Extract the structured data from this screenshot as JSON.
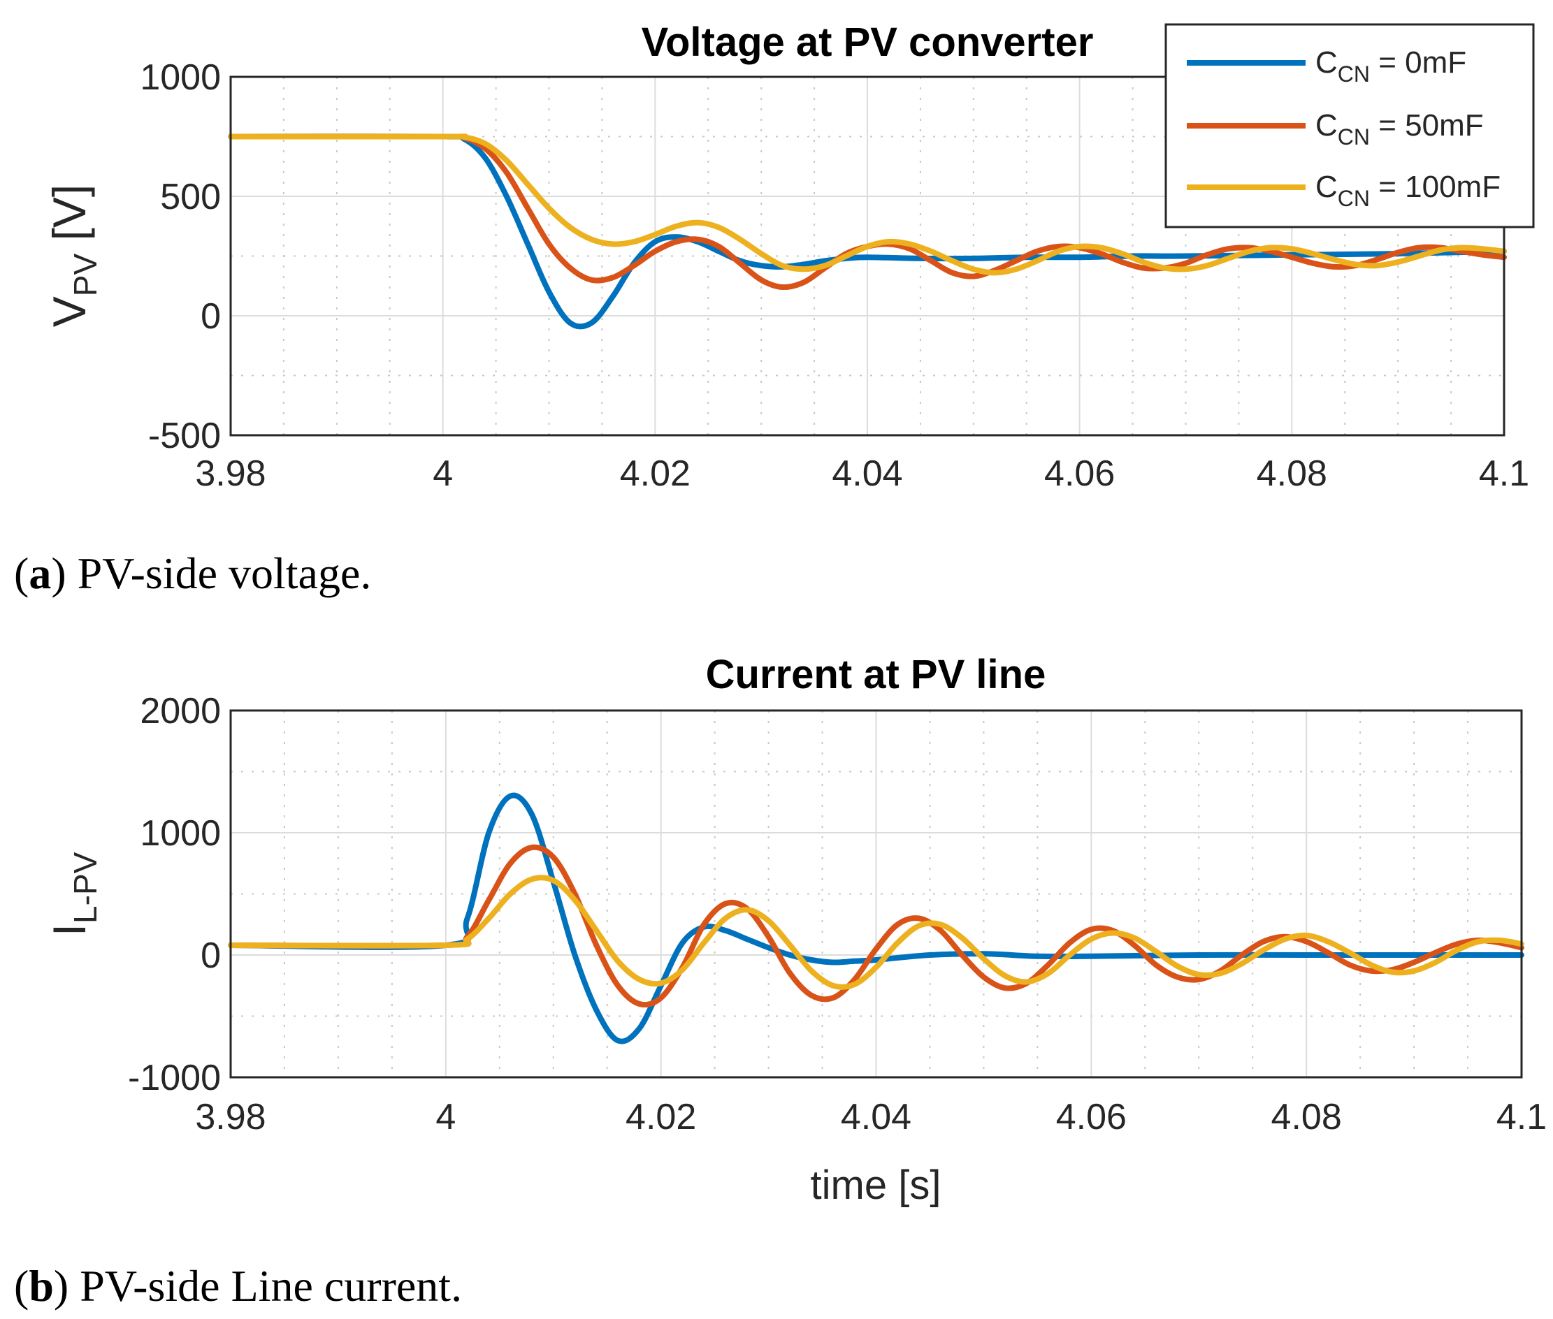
{
  "chart_data": [
    {
      "id": "voltage",
      "type": "line",
      "title": "Voltage at PV converter",
      "ylabel_main": "V",
      "ylabel_sub": "PV",
      "ylabel_unit": " [V]",
      "xlabel": "",
      "xlim": [
        3.98,
        4.1
      ],
      "ylim": [
        -500,
        1000
      ],
      "xticks": [
        "3.98",
        "4",
        "4.02",
        "4.04",
        "4.06",
        "4.08",
        "4.1"
      ],
      "yticks": [
        "-500",
        "0",
        "500",
        "1000"
      ],
      "legend": [
        {
          "main": "C",
          "sub": "CN",
          "rest": " = 0mF"
        },
        {
          "main": "C",
          "sub": "CN",
          "rest": " = 50mF"
        },
        {
          "main": "C",
          "sub": "CN",
          "rest": " = 100mF"
        }
      ],
      "legend_position": "top-right",
      "caption_letter": "a",
      "caption_text": ") PV-side voltage.",
      "caption_open": "(",
      "series": [
        {
          "name": "C_CN = 0mF",
          "color": "#0072BD",
          "x": [
            3.98,
            4.0,
            4.002,
            4.004,
            4.006,
            4.008,
            4.01,
            4.012,
            4.014,
            4.016,
            4.018,
            4.02,
            4.022,
            4.024,
            4.026,
            4.028,
            4.03,
            4.032,
            4.034,
            4.036,
            4.038,
            4.04,
            4.045,
            4.05,
            4.055,
            4.06,
            4.065,
            4.07,
            4.08,
            4.09,
            4.1
          ],
          "y": [
            750,
            750,
            740,
            660,
            500,
            300,
            100,
            -30,
            -30,
            80,
            220,
            310,
            330,
            310,
            270,
            230,
            210,
            205,
            215,
            230,
            240,
            245,
            240,
            240,
            245,
            245,
            250,
            250,
            255,
            260,
            270
          ]
        },
        {
          "name": "C_CN = 50mF",
          "color": "#D95319",
          "x": [
            3.98,
            4.0,
            4.002,
            4.004,
            4.006,
            4.008,
            4.01,
            4.012,
            4.014,
            4.016,
            4.018,
            4.02,
            4.022,
            4.024,
            4.026,
            4.028,
            4.03,
            4.032,
            4.034,
            4.036,
            4.038,
            4.04,
            4.042,
            4.044,
            4.046,
            4.048,
            4.05,
            4.052,
            4.054,
            4.056,
            4.058,
            4.06,
            4.062,
            4.064,
            4.066,
            4.068,
            4.07,
            4.072,
            4.074,
            4.076,
            4.078,
            4.08,
            4.082,
            4.084,
            4.086,
            4.088,
            4.09,
            4.092,
            4.094,
            4.096,
            4.098,
            4.1
          ],
          "y": [
            750,
            750,
            745,
            700,
            600,
            450,
            300,
            200,
            150,
            160,
            210,
            270,
            310,
            320,
            290,
            220,
            150,
            120,
            140,
            200,
            260,
            290,
            300,
            280,
            230,
            180,
            165,
            190,
            230,
            270,
            290,
            285,
            260,
            225,
            200,
            200,
            220,
            255,
            280,
            285,
            270,
            245,
            220,
            205,
            210,
            235,
            265,
            285,
            285,
            270,
            255,
            245
          ]
        },
        {
          "name": "C_CN = 100mF",
          "color": "#EDB120",
          "x": [
            3.98,
            4.0,
            4.002,
            4.004,
            4.006,
            4.008,
            4.01,
            4.012,
            4.014,
            4.016,
            4.018,
            4.02,
            4.022,
            4.024,
            4.026,
            4.028,
            4.03,
            4.032,
            4.034,
            4.036,
            4.038,
            4.04,
            4.042,
            4.044,
            4.046,
            4.048,
            4.05,
            4.052,
            4.054,
            4.056,
            4.058,
            4.06,
            4.062,
            4.064,
            4.066,
            4.068,
            4.07,
            4.072,
            4.074,
            4.076,
            4.078,
            4.08,
            4.082,
            4.084,
            4.086,
            4.088,
            4.09,
            4.092,
            4.094,
            4.096,
            4.098,
            4.1
          ],
          "y": [
            750,
            750,
            748,
            720,
            650,
            550,
            450,
            370,
            320,
            300,
            310,
            340,
            375,
            390,
            370,
            320,
            260,
            210,
            195,
            210,
            250,
            290,
            310,
            300,
            270,
            230,
            195,
            180,
            195,
            230,
            270,
            290,
            285,
            260,
            225,
            200,
            195,
            210,
            240,
            270,
            285,
            280,
            260,
            235,
            215,
            210,
            225,
            250,
            275,
            285,
            280,
            270
          ]
        }
      ]
    },
    {
      "id": "current",
      "type": "line",
      "title": "Current at PV line",
      "ylabel_main": "I",
      "ylabel_sub": "L-PV",
      "ylabel_unit": "",
      "xlabel": "time [s]",
      "xlim": [
        3.98,
        4.1
      ],
      "ylim": [
        -1000,
        2000
      ],
      "xticks": [
        "3.98",
        "4",
        "4.02",
        "4.04",
        "4.06",
        "4.08",
        "4.1"
      ],
      "yticks": [
        "-1000",
        "0",
        "1000",
        "2000"
      ],
      "caption_letter": "b",
      "caption_text": ") PV-side Line current.",
      "caption_open": "(",
      "series": [
        {
          "name": "C_CN = 0mF",
          "color": "#0072BD",
          "x": [
            3.98,
            4.0,
            4.002,
            4.004,
            4.006,
            4.008,
            4.01,
            4.012,
            4.014,
            4.016,
            4.018,
            4.02,
            4.022,
            4.024,
            4.026,
            4.028,
            4.03,
            4.032,
            4.034,
            4.036,
            4.038,
            4.04,
            4.045,
            4.05,
            4.055,
            4.06,
            4.07,
            4.08,
            4.09,
            4.1
          ],
          "y": [
            80,
            80,
            300,
            1000,
            1300,
            1150,
            600,
            0,
            -450,
            -700,
            -600,
            -250,
            100,
            230,
            200,
            130,
            60,
            0,
            -40,
            -60,
            -50,
            -40,
            0,
            10,
            -10,
            -10,
            0,
            0,
            0,
            0
          ]
        },
        {
          "name": "C_CN = 50mF",
          "color": "#D95319",
          "x": [
            3.98,
            4.0,
            4.002,
            4.004,
            4.006,
            4.008,
            4.01,
            4.012,
            4.014,
            4.016,
            4.018,
            4.02,
            4.022,
            4.024,
            4.026,
            4.028,
            4.03,
            4.032,
            4.034,
            4.036,
            4.038,
            4.04,
            4.042,
            4.044,
            4.046,
            4.048,
            4.05,
            4.052,
            4.054,
            4.056,
            4.058,
            4.06,
            4.062,
            4.064,
            4.066,
            4.068,
            4.07,
            4.072,
            4.074,
            4.076,
            4.078,
            4.08,
            4.082,
            4.084,
            4.086,
            4.088,
            4.09,
            4.092,
            4.094,
            4.096,
            4.098,
            4.1
          ],
          "y": [
            80,
            80,
            150,
            450,
            750,
            880,
            800,
            500,
            80,
            -250,
            -400,
            -350,
            -100,
            250,
            420,
            380,
            150,
            -150,
            -330,
            -350,
            -200,
            50,
            250,
            300,
            200,
            0,
            -180,
            -270,
            -230,
            -80,
            100,
            210,
            200,
            80,
            -80,
            -180,
            -200,
            -130,
            0,
            110,
            150,
            110,
            20,
            -80,
            -130,
            -120,
            -60,
            20,
            90,
            120,
            100,
            60
          ]
        },
        {
          "name": "C_CN = 100mF",
          "color": "#EDB120",
          "x": [
            3.98,
            4.0,
            4.002,
            4.004,
            4.006,
            4.008,
            4.01,
            4.012,
            4.014,
            4.016,
            4.018,
            4.02,
            4.022,
            4.024,
            4.026,
            4.028,
            4.03,
            4.032,
            4.034,
            4.036,
            4.038,
            4.04,
            4.042,
            4.044,
            4.046,
            4.048,
            4.05,
            4.052,
            4.054,
            4.056,
            4.058,
            4.06,
            4.062,
            4.064,
            4.066,
            4.068,
            4.07,
            4.072,
            4.074,
            4.076,
            4.078,
            4.08,
            4.082,
            4.084,
            4.086,
            4.088,
            4.09,
            4.092,
            4.094,
            4.096,
            4.098,
            4.1
          ],
          "y": [
            80,
            80,
            130,
            300,
            500,
            620,
            610,
            450,
            200,
            -50,
            -200,
            -230,
            -120,
            100,
            300,
            370,
            280,
            80,
            -130,
            -250,
            -240,
            -100,
            100,
            240,
            250,
            140,
            -30,
            -170,
            -220,
            -150,
            0,
            130,
            180,
            140,
            30,
            -90,
            -160,
            -150,
            -70,
            40,
            130,
            160,
            110,
            20,
            -80,
            -140,
            -130,
            -60,
            40,
            110,
            120,
            90
          ]
        }
      ]
    }
  ]
}
